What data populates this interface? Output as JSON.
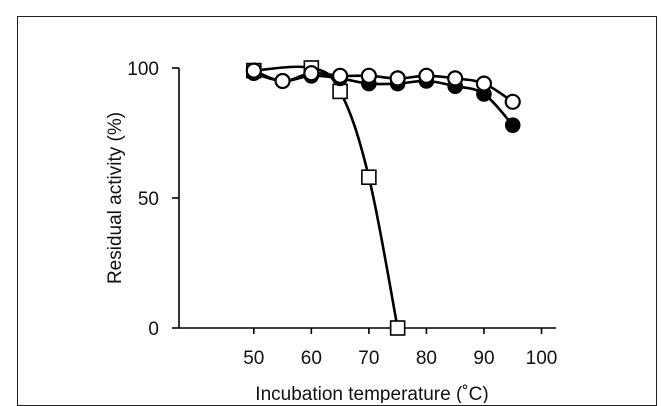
{
  "chart_data": {
    "type": "line",
    "xlabel": "Incubation temperature (˚C)",
    "ylabel": "Residual activity (%)",
    "xlim": [
      37,
      102
    ],
    "ylim": [
      0,
      100
    ],
    "x_ticks": [
      50,
      60,
      70,
      80,
      90,
      100
    ],
    "y_ticks": [
      0,
      50,
      100
    ],
    "x_tick_labels": [
      "50",
      "60",
      "70",
      "80",
      "90",
      "100"
    ],
    "y_tick_labels": [
      "0",
      "50",
      "100"
    ],
    "grid": false,
    "series": [
      {
        "marker": "filled-circle",
        "x": [
          50,
          55,
          60,
          65,
          70,
          75,
          80,
          85,
          90,
          95
        ],
        "y": [
          98,
          95,
          97,
          96,
          94,
          94,
          95,
          93,
          90,
          78
        ]
      },
      {
        "marker": "open-circle",
        "x": [
          50,
          55,
          60,
          65,
          70,
          75,
          80,
          85,
          90,
          95
        ],
        "y": [
          99,
          95,
          98,
          97,
          97,
          96,
          97,
          96,
          94,
          87
        ]
      },
      {
        "marker": "open-square",
        "x": [
          50,
          60,
          65,
          70,
          75
        ],
        "y": [
          99,
          100,
          91,
          58,
          0
        ]
      }
    ],
    "colors": {
      "line": "#000000",
      "fill_open": "#ffffff",
      "fill_solid": "#000000"
    }
  }
}
